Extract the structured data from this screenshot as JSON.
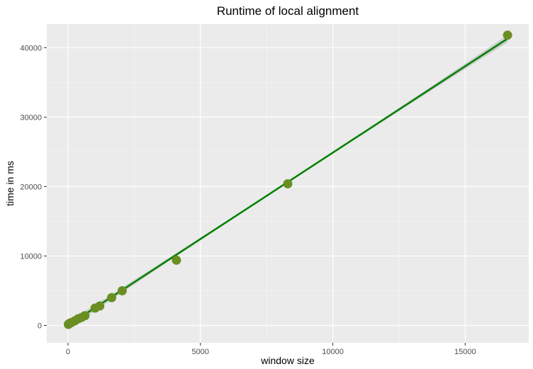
{
  "chart_data": {
    "type": "scatter",
    "title": "Runtime of local alignment",
    "xlabel": "window size",
    "ylabel": "time in ms",
    "xlim": [
      -800,
      17400
    ],
    "ylim": [
      -2500,
      43400
    ],
    "x_ticks": [
      0,
      5000,
      10000,
      15000
    ],
    "y_ticks": [
      0,
      10000,
      20000,
      30000,
      40000
    ],
    "grid": true,
    "points": [
      {
        "x": 16,
        "y": 150
      },
      {
        "x": 32,
        "y": 220
      },
      {
        "x": 64,
        "y": 300
      },
      {
        "x": 128,
        "y": 420
      },
      {
        "x": 256,
        "y": 650
      },
      {
        "x": 384,
        "y": 950
      },
      {
        "x": 512,
        "y": 1150
      },
      {
        "x": 640,
        "y": 1400
      },
      {
        "x": 1024,
        "y": 2500
      },
      {
        "x": 1200,
        "y": 2800
      },
      {
        "x": 1650,
        "y": 4000
      },
      {
        "x": 2048,
        "y": 5000
      },
      {
        "x": 4096,
        "y": 9400
      },
      {
        "x": 8300,
        "y": 20400
      },
      {
        "x": 16600,
        "y": 41800
      }
    ],
    "trend_line": {
      "method": "linear",
      "x": [
        0,
        16600
      ],
      "y": [
        0,
        41300
      ],
      "confidence_band": true
    },
    "colors": {
      "panel": "#ebebeb",
      "grid_major": "#ffffff",
      "grid_minor": "#f5f5f5",
      "point": "#6b8e23",
      "line": "#008000",
      "band": "#c4c4c4",
      "tick_text": "#4d4d4d"
    }
  }
}
